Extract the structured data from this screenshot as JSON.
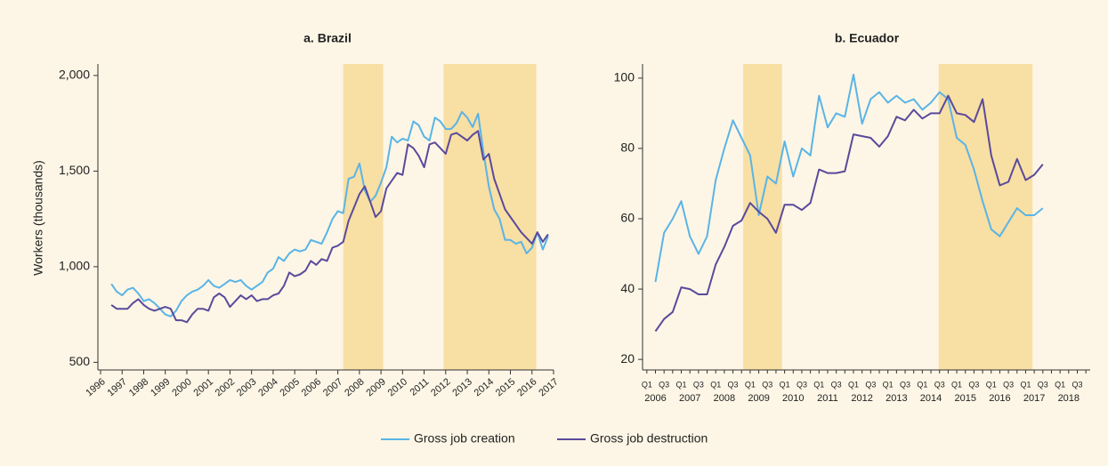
{
  "chart_data": [
    {
      "type": "line",
      "title": "a. Brazil",
      "ylabel": "Workers (thousands)",
      "xlim": [
        1996,
        2017
      ],
      "xticks": [
        1996,
        1997,
        1998,
        1999,
        2000,
        2001,
        2002,
        2003,
        2004,
        2005,
        2006,
        2007,
        2008,
        2009,
        2010,
        2011,
        2012,
        2013,
        2014,
        2015,
        2016,
        2017
      ],
      "ylim": [
        460,
        2060
      ],
      "yticks": [
        {
          "value": 500,
          "label": "500"
        },
        {
          "value": 1000,
          "label": "1,000"
        },
        {
          "value": 1500,
          "label": "1,500"
        },
        {
          "value": 2000,
          "label": "2,000"
        }
      ],
      "shaded": [
        [
          2007.25,
          2009.1
        ],
        [
          2011.9,
          2016.2
        ]
      ],
      "shade_color": "#f8dfa4",
      "x": [
        1996.5,
        1996.75,
        1997,
        1997.25,
        1997.5,
        1997.75,
        1998,
        1998.25,
        1998.5,
        1998.75,
        1999,
        1999.25,
        1999.5,
        1999.75,
        2000,
        2000.25,
        2000.5,
        2000.75,
        2001,
        2001.25,
        2001.5,
        2001.75,
        2002,
        2002.25,
        2002.5,
        2002.75,
        2003,
        2003.25,
        2003.5,
        2003.75,
        2004,
        2004.25,
        2004.5,
        2004.75,
        2005,
        2005.25,
        2005.5,
        2005.75,
        2006,
        2006.25,
        2006.5,
        2006.75,
        2007,
        2007.25,
        2007.5,
        2007.75,
        2008,
        2008.25,
        2008.5,
        2008.75,
        2009,
        2009.25,
        2009.5,
        2009.75,
        2010,
        2010.25,
        2010.5,
        2010.75,
        2011,
        2011.25,
        2011.5,
        2011.75,
        2012,
        2012.25,
        2012.5,
        2012.75,
        2013,
        2013.25,
        2013.5,
        2013.75,
        2014,
        2014.25,
        2014.5,
        2014.75,
        2015,
        2015.25,
        2015.5,
        2015.75,
        2016,
        2016.25,
        2016.5,
        2016.75
      ],
      "series": [
        {
          "name": "Gross job creation",
          "color": "#5ab4e6",
          "values": [
            910,
            870,
            850,
            880,
            890,
            860,
            820,
            830,
            810,
            780,
            750,
            740,
            770,
            820,
            850,
            870,
            880,
            900,
            930,
            900,
            890,
            910,
            930,
            920,
            930,
            900,
            880,
            900,
            920,
            970,
            990,
            1050,
            1030,
            1070,
            1090,
            1080,
            1090,
            1140,
            1130,
            1120,
            1180,
            1250,
            1290,
            1280,
            1460,
            1470,
            1540,
            1400,
            1340,
            1370,
            1440,
            1520,
            1680,
            1650,
            1670,
            1660,
            1760,
            1740,
            1680,
            1660,
            1780,
            1760,
            1720,
            1720,
            1750,
            1810,
            1780,
            1730,
            1800,
            1600,
            1420,
            1300,
            1250,
            1140,
            1140,
            1120,
            1130,
            1070,
            1100,
            1180,
            1090,
            1160
          ]
        },
        {
          "name": "Gross job destruction",
          "color": "#5a4a9b",
          "values": [
            800,
            780,
            780,
            780,
            810,
            830,
            800,
            780,
            770,
            780,
            790,
            780,
            720,
            720,
            710,
            750,
            780,
            780,
            770,
            840,
            860,
            840,
            790,
            820,
            850,
            830,
            850,
            820,
            830,
            830,
            850,
            860,
            900,
            970,
            950,
            960,
            980,
            1030,
            1010,
            1040,
            1030,
            1100,
            1110,
            1130,
            1240,
            1310,
            1380,
            1420,
            1340,
            1260,
            1290,
            1410,
            1450,
            1490,
            1480,
            1640,
            1620,
            1580,
            1520,
            1640,
            1650,
            1620,
            1590,
            1690,
            1700,
            1680,
            1660,
            1690,
            1710,
            1560,
            1590,
            1460,
            1380,
            1300,
            1260,
            1220,
            1180,
            1150,
            1120,
            1180,
            1130,
            1170
          ]
        }
      ]
    },
    {
      "type": "line",
      "title": "b. Ecuador",
      "categories": [
        "Q1",
        null,
        "Q3",
        null,
        "Q1",
        null,
        "Q3",
        null,
        "Q1",
        null,
        "Q3",
        null,
        "Q1",
        null,
        "Q3",
        null,
        "Q1",
        null,
        "Q3",
        null,
        "Q1",
        null,
        "Q3",
        null,
        "Q1",
        null,
        "Q3",
        null,
        "Q1",
        null,
        "Q3",
        null,
        "Q1",
        null,
        "Q3",
        null,
        "Q1",
        null,
        "Q3",
        null,
        "Q1",
        null,
        "Q3",
        null,
        "Q1",
        null,
        "Q3",
        null,
        "Q1",
        null,
        "Q3",
        null
      ],
      "years": [
        "2006",
        "2007",
        "2008",
        "2009",
        "2010",
        "2011",
        "2012",
        "2013",
        "2014",
        "2015",
        "2016",
        "2017",
        "2018"
      ],
      "ylim": [
        17,
        104
      ],
      "yticks": [
        20,
        40,
        60,
        80,
        100
      ],
      "shaded": [
        [
          11.2,
          15.7
        ],
        [
          33.9,
          44.8
        ]
      ],
      "shade_color": "#f8dfa4",
      "series": [
        {
          "name": "Gross job creation",
          "color": "#5ab4e6",
          "values": [
            null,
            42,
            56,
            60,
            65,
            55,
            50,
            55,
            71,
            80,
            88,
            83,
            78,
            61,
            72,
            70,
            82,
            72,
            80,
            78,
            95,
            86,
            90,
            89,
            101,
            87,
            94,
            96,
            93,
            95,
            93,
            94,
            91,
            93,
            96,
            94,
            83,
            81,
            74,
            65,
            57,
            55,
            59,
            63,
            61,
            61,
            63,
            null,
            null,
            null,
            null,
            null
          ]
        },
        {
          "name": "Gross job destruction",
          "color": "#5a4a9b",
          "values": [
            null,
            28,
            31.5,
            33.5,
            40.5,
            40,
            38.5,
            38.5,
            47,
            52,
            58,
            59.5,
            64.5,
            62,
            60,
            56,
            64,
            64,
            62.5,
            64.5,
            74,
            73,
            73,
            73.5,
            84,
            83.5,
            83,
            80.5,
            83.5,
            89,
            88,
            91,
            88.5,
            90,
            90,
            95,
            90,
            89.5,
            87.5,
            94,
            78,
            69.5,
            70.5,
            77,
            71,
            72.5,
            75.5,
            null,
            null,
            null,
            null,
            null
          ]
        }
      ]
    }
  ]
}
